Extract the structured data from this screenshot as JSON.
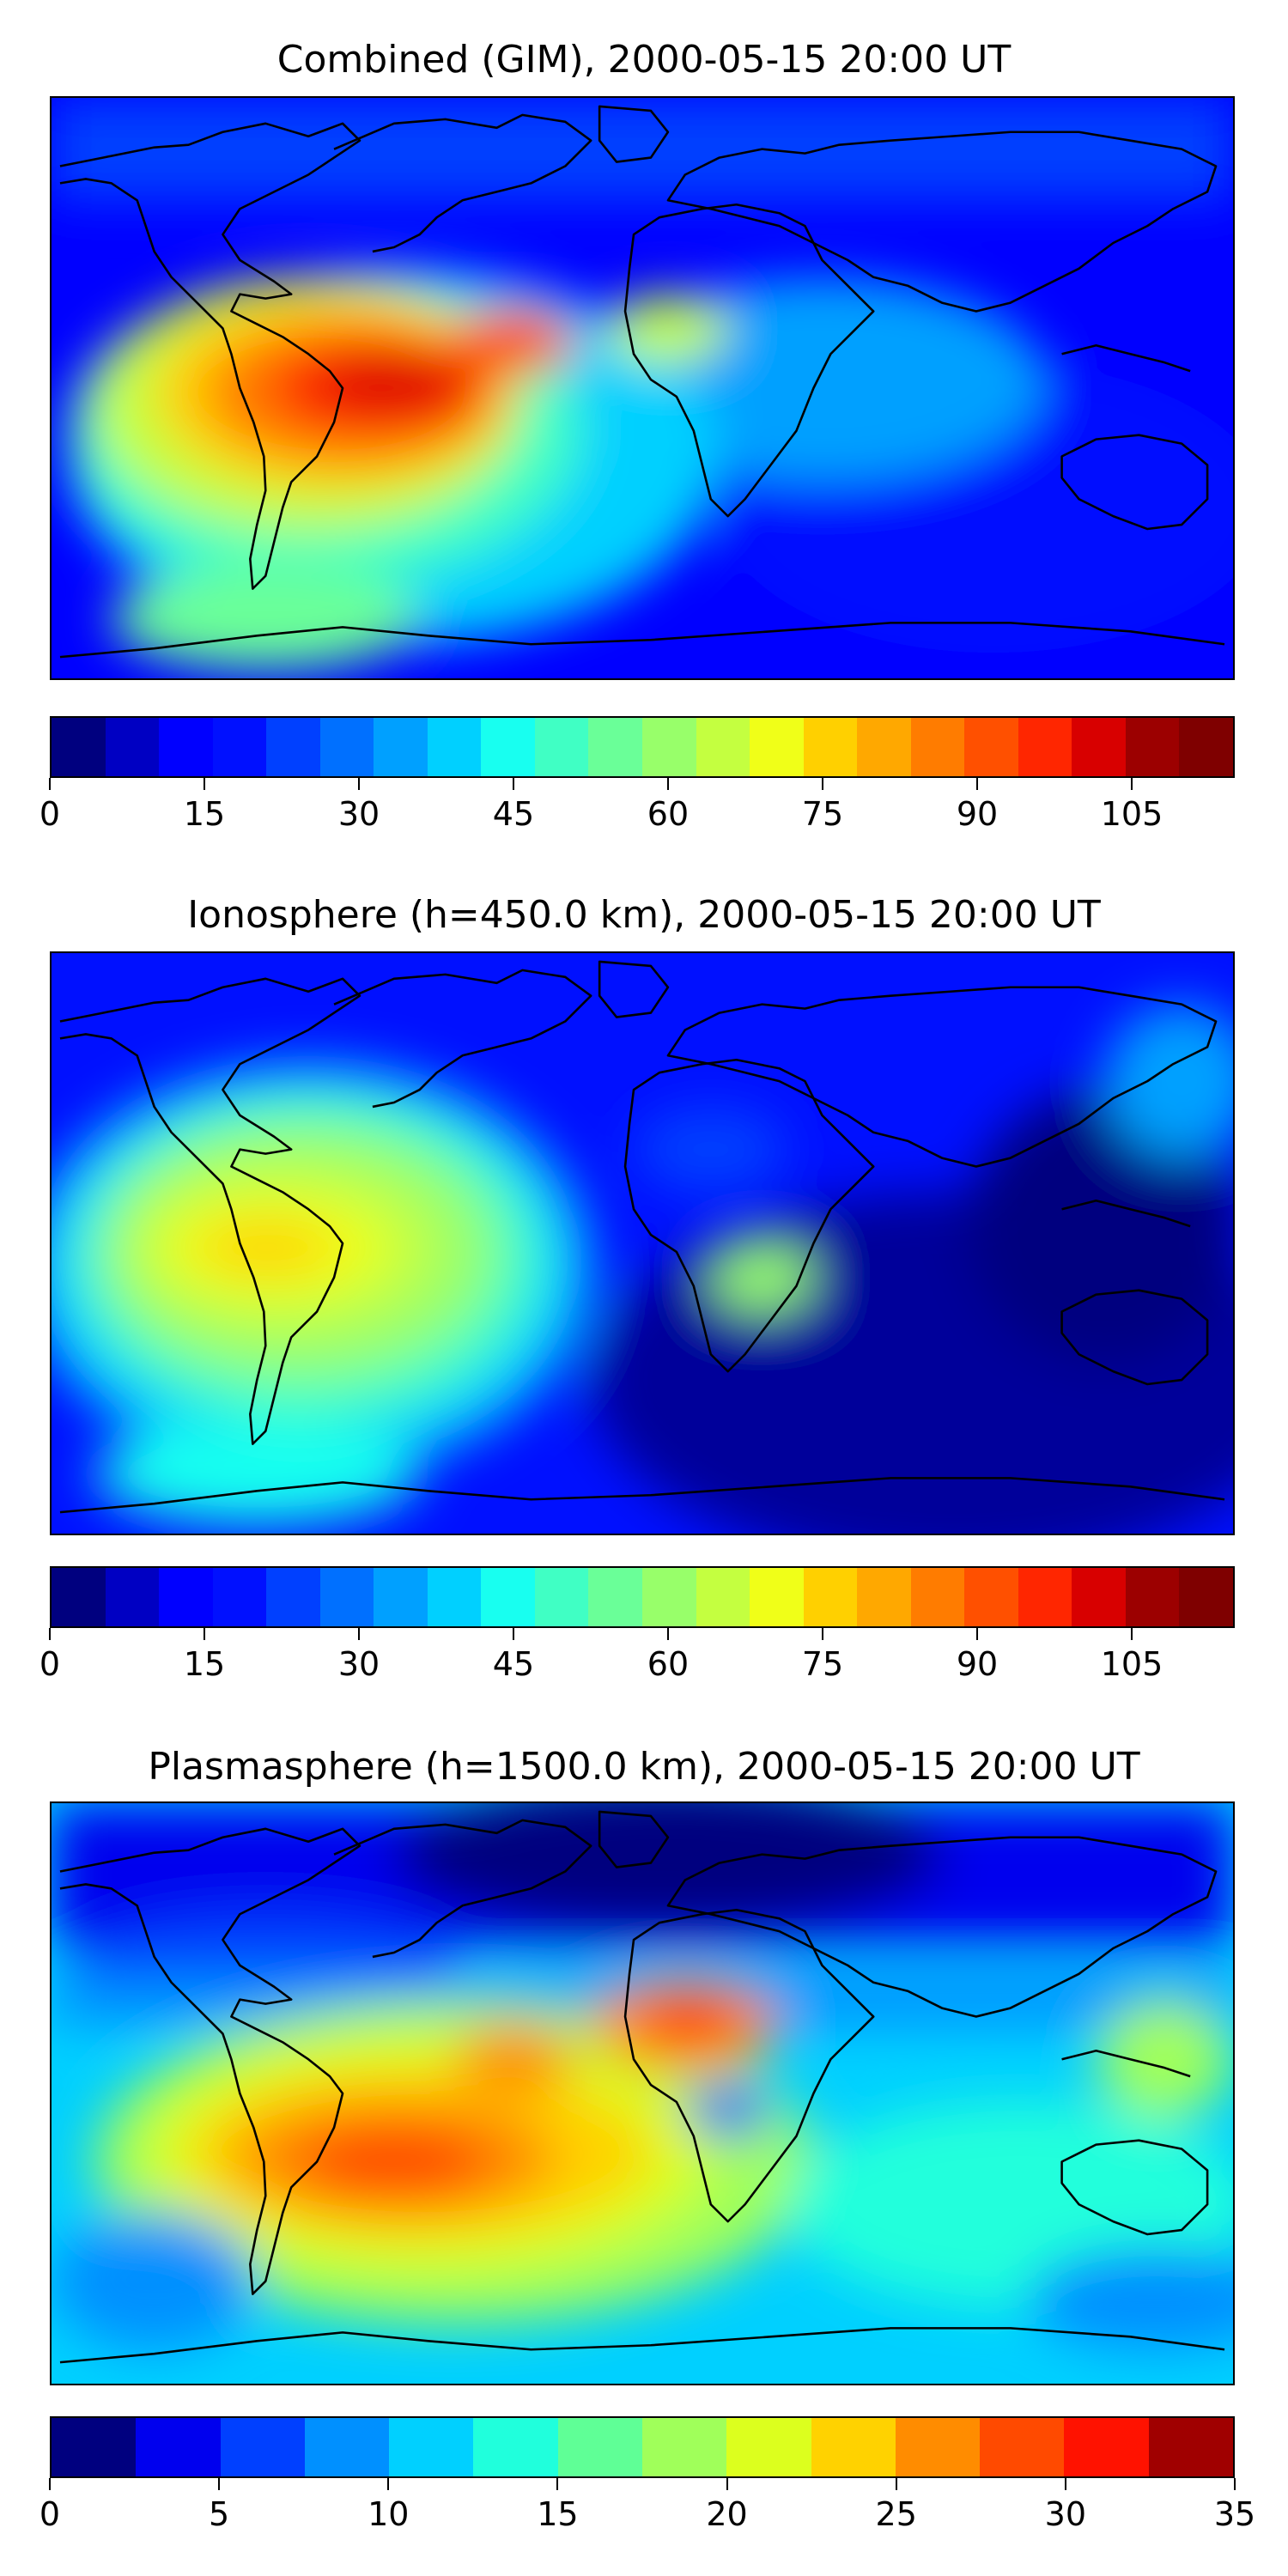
{
  "panels": [
    {
      "title": "Combined (GIM), 2000-05-15 20:00 UT",
      "colorbar_ticks": [
        "0",
        "15",
        "30",
        "45",
        "60",
        "75",
        "90",
        "105"
      ],
      "colorbar_range": [
        0,
        115
      ],
      "tick_step": 15
    },
    {
      "title": "Ionosphere  (h=450.0 km), 2000-05-15 20:00 UT",
      "colorbar_ticks": [
        "0",
        "15",
        "30",
        "45",
        "60",
        "75",
        "90",
        "105"
      ],
      "colorbar_range": [
        0,
        115
      ],
      "tick_step": 15
    },
    {
      "title": "Plasmasphere (h=1500.0 km), 2000-05-15 20:00 UT",
      "colorbar_ticks": [
        "0",
        "5",
        "10",
        "15",
        "20",
        "25",
        "30",
        "35"
      ],
      "colorbar_range": [
        0,
        35
      ],
      "tick_step": 5
    }
  ],
  "colormaps": {
    "combined": [
      "#00007f",
      "#0000c3",
      "#0000ff",
      "#0010ff",
      "#0040ff",
      "#0070ff",
      "#00a0ff",
      "#00d0ff",
      "#18fff0",
      "#40ffc4",
      "#6aff98",
      "#98ff6a",
      "#c4ff40",
      "#f0ff18",
      "#ffd000",
      "#ffa800",
      "#ff7c00",
      "#ff5000",
      "#ff2600",
      "#d80000",
      "#9c0000",
      "#7f0000"
    ],
    "plasmasphere": [
      "#00007f",
      "#0000ee",
      "#0040ff",
      "#0090ff",
      "#00d0ff",
      "#20ffdc",
      "#5fff96",
      "#a0ff5a",
      "#dcff1e",
      "#ffd200",
      "#ff8c00",
      "#ff4a00",
      "#ff1200",
      "#a00000"
    ]
  },
  "styles": {
    "coastline": "#000000",
    "low": "#0000ff",
    "lowest": "#00009a"
  }
}
